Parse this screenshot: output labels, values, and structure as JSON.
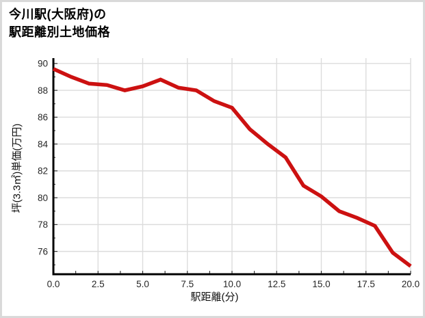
{
  "page": {
    "title_line1": "今川駅(大阪府)の",
    "title_line2": "駅距離別土地価格"
  },
  "chart_data": {
    "type": "line",
    "title": "今川駅(大阪府)の駅距離別土地価格",
    "xlabel": "駅距離(分)",
    "ylabel": "坪(3.3㎡)単価(万円)",
    "x": [
      0,
      1,
      2,
      3,
      4,
      5,
      6,
      7,
      8,
      9,
      10,
      11,
      12,
      13,
      14,
      15,
      16,
      17,
      18,
      19,
      20
    ],
    "values": [
      89.6,
      89.0,
      88.5,
      88.4,
      88.0,
      88.3,
      88.8,
      88.2,
      88.0,
      87.2,
      86.7,
      85.1,
      84.0,
      83.0,
      80.9,
      80.1,
      79.0,
      78.5,
      77.9,
      75.9,
      74.9
    ],
    "xlim": [
      0,
      20
    ],
    "ylim": [
      74.3,
      90.4
    ],
    "xticks": [
      0,
      2.5,
      5,
      7.5,
      10,
      12.5,
      15,
      17.5,
      20
    ],
    "xtick_labels": [
      "0.0",
      "2.5",
      "5.0",
      "7.5",
      "10.0",
      "12.5",
      "15.0",
      "17.5",
      "20.0"
    ],
    "yticks": [
      76,
      78,
      80,
      82,
      84,
      86,
      88,
      90
    ],
    "ytick_labels": [
      "76",
      "78",
      "80",
      "82",
      "84",
      "86",
      "88",
      "90"
    ],
    "x_minor_step": 1.25,
    "y_minor_step": 1,
    "grid": true,
    "legend": null,
    "colors": {
      "line": "#cc1111",
      "grid": "#dcdcdc",
      "spine": "#000000",
      "tick": "#2a2a2a",
      "tick_label": "#262626",
      "page_border": "#d9d9d9"
    }
  }
}
